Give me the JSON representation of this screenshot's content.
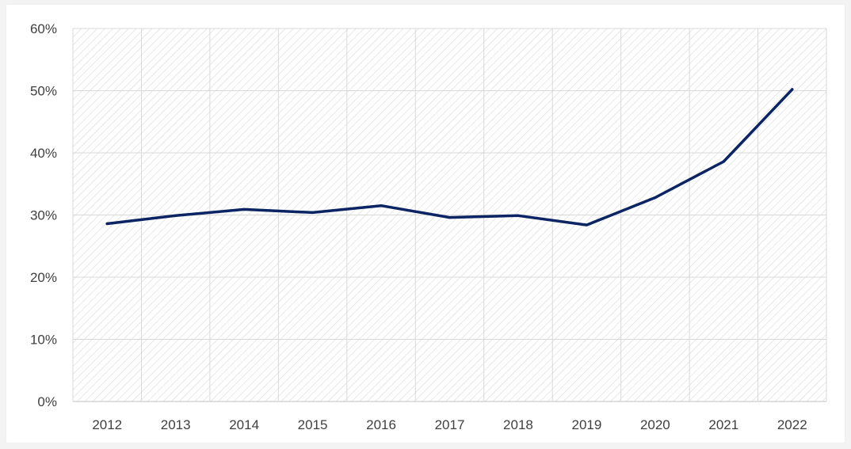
{
  "colors": {
    "line": "#0b2463",
    "grid": "#d9d9d9",
    "hatch": "#d6d6d6",
    "text": "#404040",
    "background": "#ffffff"
  },
  "chart_data": {
    "type": "line",
    "title": "",
    "xlabel": "",
    "ylabel": "",
    "categories": [
      "2012",
      "2013",
      "2014",
      "2015",
      "2016",
      "2017",
      "2018",
      "2019",
      "2020",
      "2021",
      "2022"
    ],
    "series": [
      {
        "values": [
          28.6,
          29.9,
          30.9,
          30.4,
          31.5,
          29.6,
          29.9,
          28.4,
          32.8,
          38.6,
          50.2
        ]
      }
    ],
    "ylim": [
      0,
      60
    ],
    "y_ticks": [
      0,
      10,
      20,
      30,
      40,
      50,
      60
    ],
    "y_tick_labels": [
      "0%",
      "10%",
      "20%",
      "30%",
      "40%",
      "50%",
      "60%"
    ],
    "grid": true,
    "legend": "none",
    "background_pattern": "diagonal-hatch"
  }
}
